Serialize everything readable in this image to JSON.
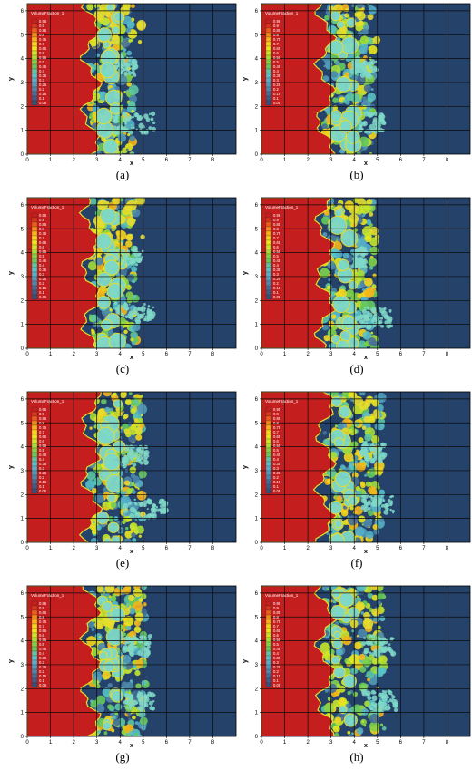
{
  "legend_title": "VolumeFraction_1",
  "legend_levels": [
    "0.95",
    "0.9",
    "0.85",
    "0.8",
    "0.75",
    "0.7",
    "0.65",
    "0.6",
    "0.55",
    "0.5",
    "0.45",
    "0.4",
    "0.35",
    "0.3",
    "0.25",
    "0.2",
    "0.15",
    "0.1",
    "0.05"
  ],
  "colorscale": [
    "#c4201e",
    "#d6381e",
    "#e8611c",
    "#f08c1a",
    "#f5b51a",
    "#f5d51c",
    "#e8e81e",
    "#c8e62a",
    "#a4de38",
    "#7fd34a",
    "#65c95e",
    "#5cc6a4",
    "#58c2c8",
    "#55b0c8",
    "#519cba",
    "#4d88aa",
    "#466f98",
    "#3f5d86",
    "#35527a"
  ],
  "colors": {
    "light_phase": "#25426a",
    "heavy_phase": "#c41e1e",
    "interface": "#e6dd2c",
    "mixed": "#7fd9c8",
    "grid": "#0b0b0b"
  },
  "axes": {
    "xlabel": "x",
    "ylabel": "y",
    "xlim": [
      0,
      9
    ],
    "ylim": [
      0,
      6.3
    ],
    "xticks": [
      "0",
      "1",
      "2",
      "3",
      "4",
      "5",
      "6",
      "7",
      "8"
    ],
    "yticks": [
      "0",
      "1",
      "2",
      "3",
      "4",
      "5",
      "6"
    ]
  },
  "panels": [
    {
      "caption": "(a)",
      "interface_x": 2.3,
      "penetration": 4.0,
      "jets": [
        {
          "y": 1.3,
          "reach": 5.5
        },
        {
          "y": 3.7,
          "reach": 4.7
        }
      ]
    },
    {
      "caption": "(b)",
      "interface_x": 2.3,
      "penetration": 4.2,
      "jets": [
        {
          "y": 1.3,
          "reach": 5.3
        },
        {
          "y": 3.6,
          "reach": 5.0
        }
      ]
    },
    {
      "caption": "(c)",
      "interface_x": 2.3,
      "penetration": 4.1,
      "jets": [
        {
          "y": 1.5,
          "reach": 5.5
        },
        {
          "y": 3.8,
          "reach": 5.0
        }
      ]
    },
    {
      "caption": "(d)",
      "interface_x": 2.3,
      "penetration": 4.3,
      "jets": [
        {
          "y": 1.3,
          "reach": 5.6
        },
        {
          "y": 3.8,
          "reach": 4.5
        }
      ]
    },
    {
      "caption": "(e)",
      "interface_x": 2.3,
      "penetration": 4.4,
      "jets": [
        {
          "y": 1.4,
          "reach": 6.0
        },
        {
          "y": 3.6,
          "reach": 5.2
        }
      ]
    },
    {
      "caption": "(f)",
      "interface_x": 2.3,
      "penetration": 4.6,
      "jets": [
        {
          "y": 1.6,
          "reach": 5.7
        },
        {
          "y": 3.8,
          "reach": 5.3
        }
      ]
    },
    {
      "caption": "(g)",
      "interface_x": 2.3,
      "penetration": 4.5,
      "jets": [
        {
          "y": 1.5,
          "reach": 5.5
        },
        {
          "y": 3.8,
          "reach": 5.3
        }
      ]
    },
    {
      "caption": "(h)",
      "interface_x": 2.3,
      "penetration": 4.7,
      "jets": [
        {
          "y": 1.5,
          "reach": 5.8
        },
        {
          "y": 3.8,
          "reach": 5.7
        }
      ]
    }
  ]
}
